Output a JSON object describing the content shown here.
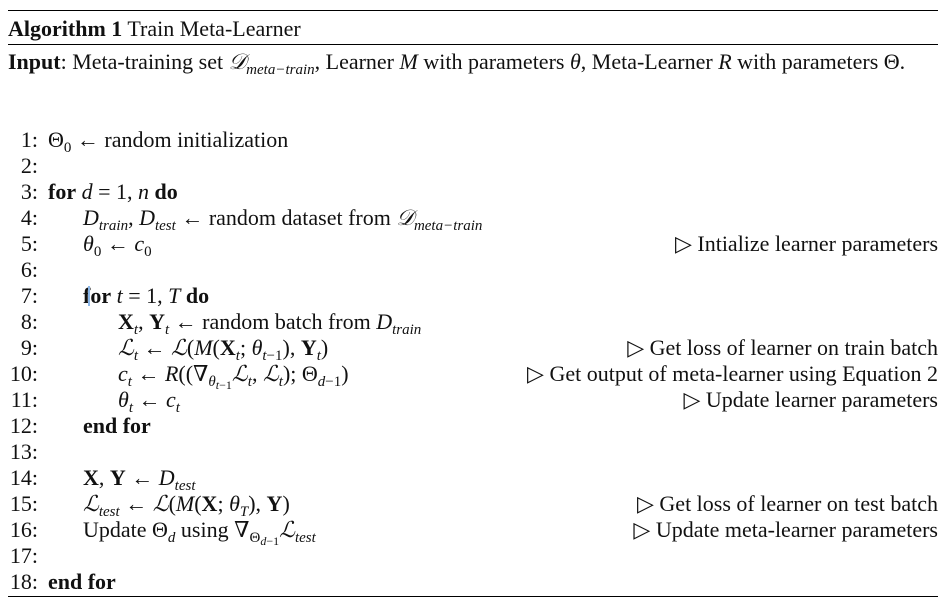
{
  "caption": {
    "label": "Algorithm 1",
    "title": "Train Meta-Learner"
  },
  "input": {
    "label": "Input",
    "text_a": ": Meta-training set ",
    "dmeta": "𝒟",
    "dmeta_sub": "meta−train",
    "text_b": ", Learner ",
    "learner_sym": "M",
    "text_c": " with parameters ",
    "theta": "θ",
    "text_d": ", Meta-Learner ",
    "meta_sym": "R",
    "text_e": " with parameters Θ."
  },
  "lines": [
    {
      "n": "1:",
      "indent": 0,
      "html_key": "l1"
    },
    {
      "n": "2:",
      "indent": 0
    },
    {
      "n": "3:",
      "indent": 0
    },
    {
      "n": "4:",
      "indent": 1
    },
    {
      "n": "5:",
      "indent": 1,
      "comment": "Intialize learner parameters"
    },
    {
      "n": "6:",
      "indent": 0
    },
    {
      "n": "7:",
      "indent": 1
    },
    {
      "n": "8:",
      "indent": 2
    },
    {
      "n": "9:",
      "indent": 2,
      "comment": "Get loss of learner on train batch"
    },
    {
      "n": "10:",
      "indent": 2,
      "comment": "Get output of meta-learner using Equation 2"
    },
    {
      "n": "11:",
      "indent": 2,
      "comment": "Update learner parameters"
    },
    {
      "n": "12:",
      "indent": 1
    },
    {
      "n": "13:",
      "indent": 0
    },
    {
      "n": "14:",
      "indent": 1
    },
    {
      "n": "15:",
      "indent": 1,
      "comment": "Get loss of learner on test batch"
    },
    {
      "n": "16:",
      "indent": 1,
      "comment": "Update meta-learner parameters"
    },
    {
      "n": "17:",
      "indent": 0
    },
    {
      "n": "18:",
      "indent": 0
    }
  ],
  "text": {
    "random_init": " ← random initialization",
    "for_kw": "for",
    "do_kw": "do",
    "end_for": "end for",
    "random_dataset_from": " ← random dataset from ",
    "random_batch_from": " ← random batch from ",
    "update": "Update ",
    "using": " using ",
    "comment_marker": "▷"
  }
}
